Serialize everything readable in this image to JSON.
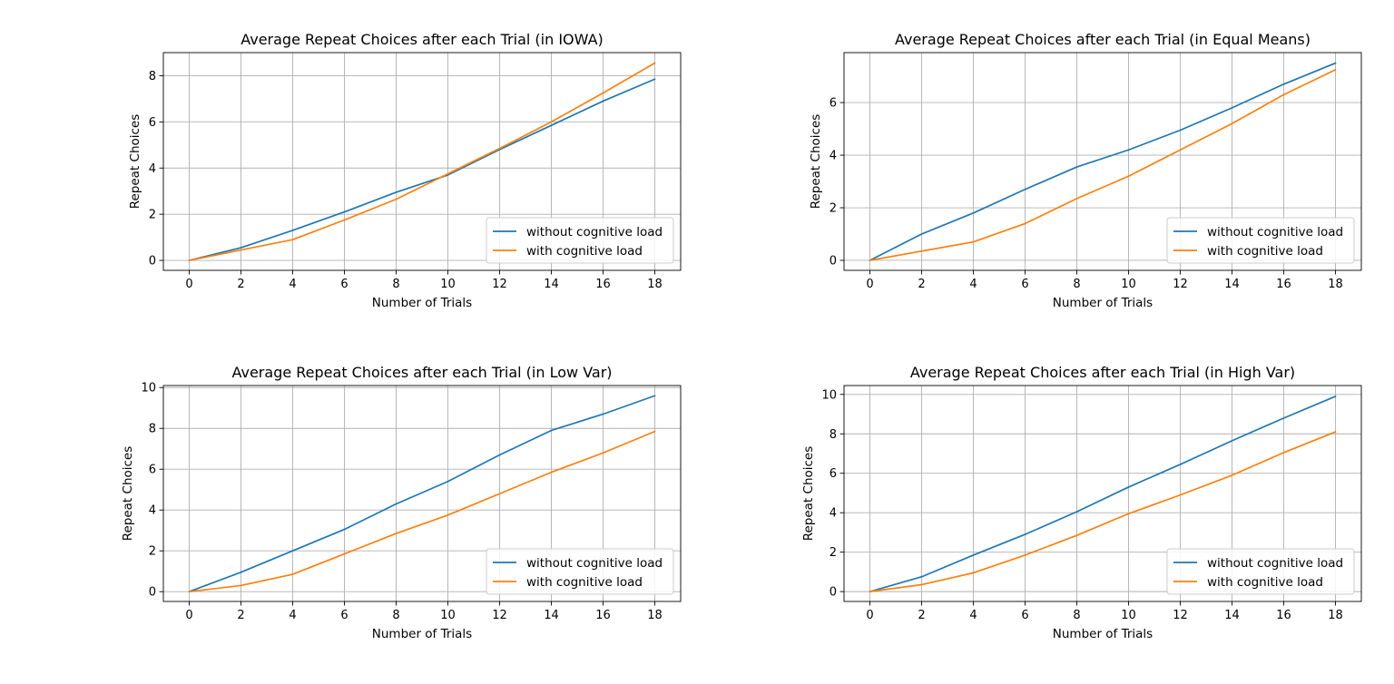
{
  "colors": {
    "without": "#1f77b4",
    "with": "#ff7f0e",
    "grid": "#b0b0b0"
  },
  "chart_data": [
    {
      "type": "line",
      "title": "Average Repeat Choices after each Trial (in IOWA)",
      "xlabel": "Number of Trials",
      "ylabel": "Repeat Choices",
      "xlim": [
        -1,
        19
      ],
      "ylim": [
        -0.43,
        9.0
      ],
      "xticks": [
        0,
        2,
        4,
        6,
        8,
        10,
        12,
        14,
        16,
        18
      ],
      "yticks": [
        0,
        2,
        4,
        6,
        8
      ],
      "grid": true,
      "legend": "lower right",
      "x": [
        0,
        2,
        4,
        6,
        8,
        10,
        12,
        14,
        16,
        18
      ],
      "series": [
        {
          "name": "without cognitive load",
          "values": [
            0,
            0.55,
            1.3,
            2.1,
            2.95,
            3.7,
            4.8,
            5.85,
            6.9,
            7.85
          ]
        },
        {
          "name": "with cognitive load",
          "values": [
            0,
            0.45,
            0.9,
            1.75,
            2.65,
            3.75,
            4.85,
            6.0,
            7.25,
            8.55
          ]
        }
      ]
    },
    {
      "type": "line",
      "title": "Average Repeat Choices after each Trial (in Equal Means)",
      "xlabel": "Number of Trials",
      "ylabel": "Repeat Choices",
      "xlim": [
        -1,
        19
      ],
      "ylim": [
        -0.38,
        7.9
      ],
      "xticks": [
        0,
        2,
        4,
        6,
        8,
        10,
        12,
        14,
        16,
        18
      ],
      "yticks": [
        0,
        2,
        4,
        6
      ],
      "grid": true,
      "legend": "lower right",
      "x": [
        0,
        2,
        4,
        6,
        8,
        10,
        12,
        14,
        16,
        18
      ],
      "series": [
        {
          "name": "without cognitive load",
          "values": [
            0,
            1.0,
            1.8,
            2.7,
            3.55,
            4.2,
            4.95,
            5.8,
            6.7,
            7.5
          ]
        },
        {
          "name": "with cognitive load",
          "values": [
            0,
            0.35,
            0.7,
            1.4,
            2.35,
            3.2,
            4.2,
            5.2,
            6.3,
            7.25
          ]
        }
      ]
    },
    {
      "type": "line",
      "title": "Average Repeat Choices after each Trial (in Low Var)",
      "xlabel": "Number of Trials",
      "ylabel": "Repeat Choices",
      "xlim": [
        -1,
        19
      ],
      "ylim": [
        -0.48,
        10.1
      ],
      "xticks": [
        0,
        2,
        4,
        6,
        8,
        10,
        12,
        14,
        16,
        18
      ],
      "yticks": [
        0,
        2,
        4,
        6,
        8,
        10
      ],
      "grid": true,
      "legend": "lower right",
      "x": [
        0,
        2,
        4,
        6,
        8,
        10,
        12,
        14,
        16,
        18
      ],
      "series": [
        {
          "name": "without cognitive load",
          "values": [
            0,
            0.95,
            2.0,
            3.05,
            4.3,
            5.4,
            6.7,
            7.9,
            8.7,
            9.6
          ]
        },
        {
          "name": "with cognitive load",
          "values": [
            0,
            0.3,
            0.85,
            1.85,
            2.85,
            3.75,
            4.8,
            5.85,
            6.8,
            7.85
          ]
        }
      ]
    },
    {
      "type": "line",
      "title": "Average Repeat Choices after each Trial (in High Var)",
      "xlabel": "Number of Trials",
      "ylabel": "Repeat Choices",
      "xlim": [
        -1,
        19
      ],
      "ylim": [
        -0.5,
        10.45
      ],
      "xticks": [
        0,
        2,
        4,
        6,
        8,
        10,
        12,
        14,
        16,
        18
      ],
      "yticks": [
        0,
        2,
        4,
        6,
        8,
        10
      ],
      "grid": true,
      "legend": "lower right",
      "x": [
        0,
        2,
        4,
        6,
        8,
        10,
        12,
        14,
        16,
        18
      ],
      "series": [
        {
          "name": "without cognitive load",
          "values": [
            0,
            0.75,
            1.85,
            2.9,
            4.05,
            5.3,
            6.45,
            7.65,
            8.8,
            9.9
          ]
        },
        {
          "name": "with cognitive load",
          "values": [
            0,
            0.35,
            0.95,
            1.85,
            2.85,
            3.95,
            4.9,
            5.9,
            7.05,
            8.1
          ]
        }
      ]
    }
  ]
}
